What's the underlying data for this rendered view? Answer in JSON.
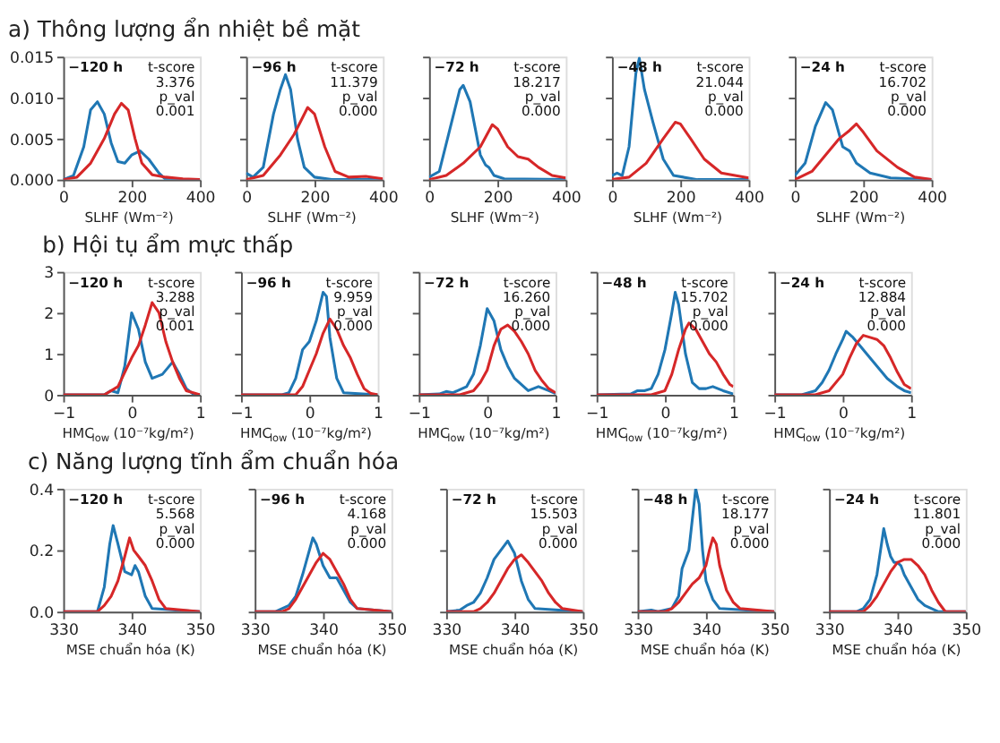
{
  "chart_data": [
    {
      "type": "line",
      "title": "a) Thông lượng ẩn nhiệt bề mặt",
      "xlabel": "SLHF (Wm⁻²)",
      "xlim": [
        0,
        400
      ],
      "xticks": [
        0,
        200,
        400
      ],
      "ylim": [
        0,
        0.015
      ],
      "yticks": [
        {
          "value": 0,
          "label": "0.000"
        },
        {
          "value": 0.005,
          "label": "0.005"
        },
        {
          "value": 0.01,
          "label": "0.010"
        },
        {
          "value": 0.015,
          "label": "0.015"
        }
      ],
      "annotations": [
        "−120 h",
        "t-score",
        "3.376",
        "p_val",
        "0.001"
      ],
      "series": [
        {
          "color": "#1f77b4",
          "x": [
            0,
            30,
            60,
            80,
            100,
            120,
            140,
            160,
            180,
            200,
            225,
            250,
            280,
            300,
            400
          ],
          "values": [
            0,
            0.0005,
            0.004,
            0.0085,
            0.0095,
            0.008,
            0.0045,
            0.0022,
            0.002,
            0.003,
            0.0035,
            0.0025,
            0.0008,
            0,
            0
          ]
        },
        {
          "color": "#d62728",
          "x": [
            0,
            40,
            80,
            120,
            150,
            170,
            190,
            210,
            230,
            260,
            300,
            350,
            400
          ],
          "values": [
            0,
            0.0003,
            0.002,
            0.005,
            0.008,
            0.0093,
            0.0085,
            0.005,
            0.002,
            0.0006,
            0.0003,
            0.0001,
            0
          ]
        }
      ]
    },
    {
      "type": "line",
      "xlabel": "SLHF (Wm⁻²)",
      "xlim": [
        0,
        400
      ],
      "xticks": [
        0,
        200,
        400
      ],
      "ylim": [
        0,
        0.015
      ],
      "yticks": [
        0,
        0.005,
        0.01,
        0.015
      ],
      "tick_labels": "x",
      "annotations": [
        "−96 h",
        "t-score",
        "11.379",
        "p_val",
        "0.000"
      ],
      "series": [
        {
          "color": "#1f77b4",
          "x": [
            0,
            20,
            50,
            80,
            100,
            115,
            130,
            150,
            170,
            200,
            250,
            400
          ],
          "values": [
            0.0008,
            0.0003,
            0.0015,
            0.008,
            0.011,
            0.0128,
            0.011,
            0.005,
            0.0015,
            0.0003,
            0,
            0
          ]
        },
        {
          "color": "#d62728",
          "x": [
            0,
            50,
            100,
            140,
            180,
            200,
            230,
            260,
            300,
            350,
            400
          ],
          "values": [
            0,
            0.0005,
            0.003,
            0.0055,
            0.0088,
            0.008,
            0.004,
            0.001,
            0.0003,
            0.0004,
            0.0001
          ]
        }
      ]
    },
    {
      "type": "line",
      "xlabel": "SLHF (Wm⁻²)",
      "xlim": [
        0,
        400
      ],
      "xticks": [
        0,
        200,
        400
      ],
      "ylim": [
        0,
        0.015
      ],
      "yticks": [
        0,
        0.005,
        0.01,
        0.015
      ],
      "tick_labels": "x",
      "annotations": [
        "−72 h",
        "t-score",
        "18.217",
        "p_val",
        "0.000"
      ],
      "series": [
        {
          "color": "#1f77b4",
          "x": [
            0,
            30,
            60,
            90,
            100,
            120,
            150,
            165,
            175,
            190,
            220,
            400
          ],
          "values": [
            0.0003,
            0.001,
            0.006,
            0.011,
            0.0115,
            0.0095,
            0.003,
            0.0018,
            0.0015,
            0.0005,
            0.0001,
            0
          ]
        },
        {
          "color": "#d62728",
          "x": [
            0,
            50,
            100,
            150,
            185,
            200,
            230,
            260,
            290,
            320,
            360,
            400
          ],
          "values": [
            0,
            0.0005,
            0.002,
            0.004,
            0.0067,
            0.0062,
            0.004,
            0.0028,
            0.0025,
            0.0015,
            0.0005,
            0.0002
          ]
        }
      ]
    },
    {
      "type": "line",
      "xlabel": "SLHF (Wm⁻²)",
      "xlim": [
        0,
        400
      ],
      "xticks": [
        0,
        200,
        400
      ],
      "ylim": [
        0,
        0.015
      ],
      "yticks": [
        0,
        0.005,
        0.01,
        0.015
      ],
      "tick_labels": "x",
      "annotations": [
        "−48 h",
        "t-score",
        "21.044",
        "p_val",
        "0.000"
      ],
      "series": [
        {
          "color": "#1f77b4",
          "x": [
            0,
            15,
            30,
            50,
            70,
            80,
            95,
            120,
            150,
            180,
            250,
            400
          ],
          "values": [
            0.0005,
            0.0008,
            0.0005,
            0.004,
            0.013,
            0.0148,
            0.011,
            0.007,
            0.0025,
            0.0005,
            0,
            0
          ]
        },
        {
          "color": "#d62728",
          "x": [
            0,
            50,
            100,
            150,
            185,
            200,
            230,
            270,
            320,
            400
          ],
          "values": [
            0,
            0.0003,
            0.002,
            0.005,
            0.007,
            0.0068,
            0.005,
            0.0025,
            0.0008,
            0.0002
          ]
        }
      ]
    },
    {
      "type": "line",
      "xlabel": "SLHF (Wm⁻²)",
      "xlim": [
        0,
        400
      ],
      "xticks": [
        0,
        200,
        400
      ],
      "ylim": [
        0,
        0.015
      ],
      "yticks": [
        0,
        0.005,
        0.01,
        0.015
      ],
      "tick_labels": "x",
      "annotations": [
        "−24 h",
        "t-score",
        "16.702",
        "p_val",
        "0.000"
      ],
      "series": [
        {
          "color": "#1f77b4",
          "x": [
            0,
            30,
            60,
            90,
            110,
            140,
            160,
            180,
            220,
            280,
            400
          ],
          "values": [
            0.0005,
            0.002,
            0.0065,
            0.0094,
            0.0085,
            0.004,
            0.0035,
            0.002,
            0.0008,
            0.0002,
            0
          ]
        },
        {
          "color": "#d62728",
          "x": [
            0,
            50,
            100,
            130,
            160,
            180,
            200,
            240,
            300,
            350,
            400
          ],
          "values": [
            0,
            0.001,
            0.0035,
            0.005,
            0.006,
            0.0068,
            0.0058,
            0.0035,
            0.0015,
            0.0003,
            0
          ]
        }
      ]
    },
    {
      "type": "line",
      "title": "b) Hội tụ ẩm mực thấp",
      "xlabel": "HMC$_{low}$(10⁻⁷kg/m²)",
      "xlim": [
        -1,
        1
      ],
      "xticks": [
        -1,
        0,
        1
      ],
      "ylim": [
        0,
        3
      ],
      "yticks": [
        0,
        1,
        2,
        3
      ],
      "annotations": [
        "−120 h",
        "t-score",
        "3.288",
        "p_val",
        "0.001"
      ],
      "series": [
        {
          "color": "#1f77b4",
          "x": [
            -1,
            -0.4,
            -0.3,
            -0.2,
            -0.1,
            0,
            0.1,
            0.2,
            0.3,
            0.45,
            0.6,
            0.7,
            0.8,
            0.9,
            1
          ],
          "values": [
            0,
            0,
            0.1,
            0.05,
            0.7,
            2.0,
            1.6,
            0.8,
            0.4,
            0.5,
            0.8,
            0.5,
            0.15,
            0.02,
            0
          ]
        },
        {
          "color": "#d62728",
          "x": [
            -1,
            -0.4,
            -0.2,
            0,
            0.1,
            0.2,
            0.3,
            0.4,
            0.5,
            0.6,
            0.7,
            0.8,
            1
          ],
          "values": [
            0,
            0,
            0.2,
            0.9,
            1.2,
            1.7,
            2.25,
            2.0,
            1.3,
            0.8,
            0.4,
            0.1,
            0
          ]
        }
      ]
    },
    {
      "type": "line",
      "xlabel": "HMC$_{low}$(10⁻⁷kg/m²)",
      "xlim": [
        -1,
        1
      ],
      "xticks": [
        -1,
        0,
        1
      ],
      "ylim": [
        0,
        3
      ],
      "yticks": [
        0,
        1,
        2,
        3
      ],
      "tick_labels": "x",
      "annotations": [
        "−96 h",
        "t-score",
        "9.959",
        "p_val",
        "0.000"
      ],
      "series": [
        {
          "color": "#1f77b4",
          "x": [
            -1,
            -0.4,
            -0.3,
            -0.2,
            -0.1,
            0,
            0.1,
            0.2,
            0.25,
            0.3,
            0.4,
            0.5,
            1
          ],
          "values": [
            0,
            0,
            0.05,
            0.4,
            1.1,
            1.3,
            1.8,
            2.5,
            2.4,
            1.4,
            0.4,
            0.05,
            0
          ]
        },
        {
          "color": "#d62728",
          "x": [
            -1,
            -0.2,
            -0.1,
            0,
            0.1,
            0.2,
            0.3,
            0.4,
            0.5,
            0.6,
            0.7,
            0.8,
            0.9,
            1
          ],
          "values": [
            0,
            0,
            0.2,
            0.6,
            1.0,
            1.5,
            1.85,
            1.6,
            1.2,
            0.9,
            0.5,
            0.15,
            0.03,
            0
          ]
        }
      ]
    },
    {
      "type": "line",
      "xlabel": "HMC$_{low}$(10⁻⁷kg/m²)",
      "xlim": [
        -1,
        1
      ],
      "xticks": [
        -1,
        0,
        1
      ],
      "ylim": [
        0,
        3
      ],
      "yticks": [
        0,
        1,
        2,
        3
      ],
      "tick_labels": "x",
      "annotations": [
        "−72 h",
        "t-score",
        "16.260",
        "p_val",
        "0.000"
      ],
      "series": [
        {
          "color": "#1f77b4",
          "x": [
            -1,
            -0.7,
            -0.6,
            -0.5,
            -0.3,
            -0.2,
            -0.1,
            0,
            0.1,
            0.2,
            0.3,
            0.4,
            0.6,
            0.75,
            0.9,
            1
          ],
          "values": [
            0,
            0.02,
            0.08,
            0.05,
            0.2,
            0.5,
            1.2,
            2.1,
            1.8,
            1.1,
            0.7,
            0.4,
            0.1,
            0.2,
            0.1,
            0.03
          ]
        },
        {
          "color": "#d62728",
          "x": [
            -1,
            -0.4,
            -0.2,
            -0.1,
            0,
            0.1,
            0.2,
            0.3,
            0.4,
            0.5,
            0.6,
            0.7,
            0.8,
            0.9,
            1
          ],
          "values": [
            0,
            0,
            0.1,
            0.3,
            0.6,
            1.2,
            1.6,
            1.7,
            1.55,
            1.3,
            1.0,
            0.6,
            0.35,
            0.15,
            0.05
          ]
        }
      ]
    },
    {
      "type": "line",
      "xlabel": "HMC$_{low}$(10⁻⁷kg/m²)",
      "xlim": [
        -1,
        1
      ],
      "xticks": [
        -1,
        0,
        1
      ],
      "ylim": [
        0,
        3
      ],
      "yticks": [
        0,
        1,
        2,
        3
      ],
      "tick_labels": "x",
      "annotations": [
        "−48 h",
        "t-score",
        "15.702",
        "p_val",
        "0.000"
      ],
      "series": [
        {
          "color": "#1f77b4",
          "x": [
            -1,
            -0.5,
            -0.4,
            -0.3,
            -0.2,
            -0.1,
            0,
            0.1,
            0.15,
            0.2,
            0.3,
            0.4,
            0.5,
            0.6,
            0.7,
            0.85,
            1
          ],
          "values": [
            0,
            0.02,
            0.1,
            0.1,
            0.15,
            0.5,
            1.1,
            2.0,
            2.5,
            2.2,
            1.0,
            0.3,
            0.15,
            0.15,
            0.2,
            0.1,
            0.02
          ]
        },
        {
          "color": "#d62728",
          "x": [
            -1,
            -0.2,
            0,
            0.1,
            0.2,
            0.3,
            0.35,
            0.45,
            0.55,
            0.65,
            0.75,
            0.85,
            0.95,
            1
          ],
          "values": [
            0,
            0,
            0.1,
            0.5,
            1.1,
            1.6,
            1.75,
            1.6,
            1.3,
            1.0,
            0.8,
            0.5,
            0.25,
            0.2
          ]
        }
      ]
    },
    {
      "type": "line",
      "xlabel": "HMC$_{low}$(10⁻⁷kg/m²)",
      "xlim": [
        -1,
        1
      ],
      "xticks": [
        -1,
        0,
        1
      ],
      "ylim": [
        0,
        3
      ],
      "yticks": [
        0,
        1,
        2,
        3
      ],
      "tick_labels": "x",
      "annotations": [
        "−24 h",
        "t-score",
        "12.884",
        "p_val",
        "0.000"
      ],
      "series": [
        {
          "color": "#1f77b4",
          "x": [
            -1,
            -0.6,
            -0.4,
            -0.3,
            -0.2,
            -0.1,
            0,
            0.05,
            0.15,
            0.25,
            0.35,
            0.5,
            0.65,
            0.8,
            0.9,
            1
          ],
          "values": [
            0,
            0,
            0.1,
            0.3,
            0.6,
            1.0,
            1.35,
            1.55,
            1.4,
            1.2,
            1.0,
            0.7,
            0.4,
            0.2,
            0.1,
            0.05
          ]
        },
        {
          "color": "#d62728",
          "x": [
            -1,
            -0.4,
            -0.2,
            0,
            0.1,
            0.2,
            0.3,
            0.4,
            0.5,
            0.6,
            0.7,
            0.8,
            0.9,
            1
          ],
          "values": [
            0,
            0,
            0.1,
            0.5,
            0.9,
            1.25,
            1.45,
            1.4,
            1.35,
            1.2,
            0.9,
            0.55,
            0.25,
            0.15
          ]
        }
      ]
    },
    {
      "type": "line",
      "title": "c) Năng lượng tĩnh ẩm chuẩn hóa",
      "xlabel": "MSE chuẩn hóa (K)",
      "xlim": [
        330,
        350
      ],
      "xticks": [
        330,
        340,
        350
      ],
      "ylim": [
        0,
        0.4
      ],
      "yticks": [
        {
          "value": 0,
          "label": "0.0"
        },
        {
          "value": 0.2,
          "label": "0.2"
        },
        {
          "value": 0.4,
          "label": "0.4"
        }
      ],
      "annotations": [
        "−120 h",
        "t-score",
        "5.568",
        "p_val",
        "0.000"
      ],
      "series": [
        {
          "color": "#1f77b4",
          "x": [
            330,
            335,
            336,
            336.8,
            337.3,
            338,
            339,
            340,
            340.5,
            341,
            342,
            343,
            350
          ],
          "values": [
            0,
            0,
            0.08,
            0.22,
            0.28,
            0.22,
            0.13,
            0.12,
            0.15,
            0.13,
            0.05,
            0.01,
            0
          ]
        },
        {
          "color": "#d62728",
          "x": [
            330,
            335,
            336,
            337,
            338,
            339,
            339.7,
            340.3,
            341,
            342,
            343,
            344,
            345,
            350
          ],
          "values": [
            0,
            0,
            0.02,
            0.05,
            0.1,
            0.18,
            0.24,
            0.2,
            0.18,
            0.15,
            0.1,
            0.04,
            0.01,
            0
          ]
        }
      ]
    },
    {
      "type": "line",
      "xlabel": "MSE chuẩn hóa (K)",
      "xlim": [
        330,
        350
      ],
      "xticks": [
        330,
        340,
        350
      ],
      "ylim": [
        0,
        0.4
      ],
      "yticks": [
        0,
        0.2,
        0.4
      ],
      "tick_labels": "x",
      "annotations": [
        "−96 h",
        "t-score",
        "4.168",
        "p_val",
        "0.000"
      ],
      "series": [
        {
          "color": "#1f77b4",
          "x": [
            330,
            333,
            334,
            335,
            336,
            337,
            338.5,
            339,
            340,
            341,
            342,
            343,
            344,
            345,
            350
          ],
          "values": [
            0,
            0,
            0.01,
            0.02,
            0.05,
            0.12,
            0.24,
            0.22,
            0.15,
            0.11,
            0.11,
            0.07,
            0.03,
            0.01,
            0
          ]
        },
        {
          "color": "#d62728",
          "x": [
            330,
            334,
            335,
            336,
            337,
            338,
            339,
            340,
            341,
            342,
            343,
            344,
            345,
            350
          ],
          "values": [
            0,
            0,
            0.01,
            0.04,
            0.08,
            0.12,
            0.16,
            0.19,
            0.17,
            0.13,
            0.09,
            0.04,
            0.01,
            0
          ]
        }
      ]
    },
    {
      "type": "line",
      "xlabel": "MSE chuẩn hóa (K)",
      "xlim": [
        330,
        350
      ],
      "xticks": [
        330,
        340,
        350
      ],
      "ylim": [
        0,
        0.4
      ],
      "yticks": [
        0,
        0.2,
        0.4
      ],
      "tick_labels": "x",
      "annotations": [
        "−72 h",
        "t-score",
        "15.503",
        "p_val",
        "0.000"
      ],
      "series": [
        {
          "color": "#1f77b4",
          "x": [
            330,
            332,
            333,
            334,
            335,
            336,
            337,
            338,
            339,
            340,
            341,
            342,
            343,
            350
          ],
          "values": [
            0,
            0.005,
            0.02,
            0.03,
            0.06,
            0.11,
            0.17,
            0.2,
            0.23,
            0.19,
            0.1,
            0.04,
            0.01,
            0
          ]
        },
        {
          "color": "#d62728",
          "x": [
            330,
            334,
            335,
            336,
            337,
            338,
            339,
            340,
            341,
            342,
            343,
            344,
            345,
            346,
            347,
            350
          ],
          "values": [
            0,
            0,
            0.01,
            0.03,
            0.06,
            0.1,
            0.14,
            0.17,
            0.185,
            0.16,
            0.13,
            0.1,
            0.06,
            0.03,
            0.01,
            0
          ]
        }
      ]
    },
    {
      "type": "line",
      "xlabel": "MSE chuẩn hóa (K)",
      "xlim": [
        330,
        350
      ],
      "xticks": [
        330,
        340,
        350
      ],
      "ylim": [
        0,
        0.4
      ],
      "yticks": [
        0,
        0.2,
        0.4
      ],
      "tick_labels": "x",
      "annotations": [
        "−48 h",
        "t-score",
        "18.177",
        "p_val",
        "0.000"
      ],
      "series": [
        {
          "color": "#1f77b4",
          "x": [
            330,
            332,
            333,
            335,
            336,
            336.5,
            337,
            337.5,
            338,
            338.5,
            339,
            339.5,
            340,
            341,
            342,
            350
          ],
          "values": [
            0,
            0.005,
            0,
            0.01,
            0.05,
            0.14,
            0.17,
            0.2,
            0.3,
            0.4,
            0.35,
            0.2,
            0.1,
            0.04,
            0.01,
            0
          ]
        },
        {
          "color": "#d62728",
          "x": [
            330,
            334,
            335,
            336,
            337,
            338,
            339,
            340,
            340.5,
            341,
            341.5,
            342,
            343,
            344,
            345,
            350
          ],
          "values": [
            0,
            0,
            0.01,
            0.03,
            0.06,
            0.09,
            0.11,
            0.15,
            0.2,
            0.24,
            0.22,
            0.15,
            0.07,
            0.03,
            0.01,
            0
          ]
        }
      ]
    },
    {
      "type": "line",
      "xlabel": "MSE chuẩn hóa (K)",
      "xlim": [
        330,
        350
      ],
      "xticks": [
        330,
        340,
        350
      ],
      "ylim": [
        0,
        0.4
      ],
      "yticks": [
        0,
        0.2,
        0.4
      ],
      "tick_labels": "x",
      "annotations": [
        "−24 h",
        "t-score",
        "11.801",
        "p_val",
        "0.000"
      ],
      "series": [
        {
          "color": "#1f77b4",
          "x": [
            330,
            334,
            335,
            336,
            337,
            338,
            338.5,
            339,
            339.5,
            340,
            340.5,
            341,
            342,
            343,
            344,
            345,
            346,
            350
          ],
          "values": [
            0,
            0,
            0.01,
            0.04,
            0.12,
            0.27,
            0.22,
            0.18,
            0.16,
            0.16,
            0.15,
            0.12,
            0.08,
            0.04,
            0.02,
            0.01,
            0,
            0
          ]
        },
        {
          "color": "#d62728",
          "x": [
            330,
            335,
            336,
            337,
            338,
            339,
            340,
            341,
            342,
            343,
            344,
            345,
            346,
            347,
            350
          ],
          "values": [
            0,
            0,
            0.02,
            0.05,
            0.09,
            0.13,
            0.16,
            0.17,
            0.17,
            0.15,
            0.12,
            0.07,
            0.03,
            0,
            0
          ]
        }
      ]
    }
  ]
}
